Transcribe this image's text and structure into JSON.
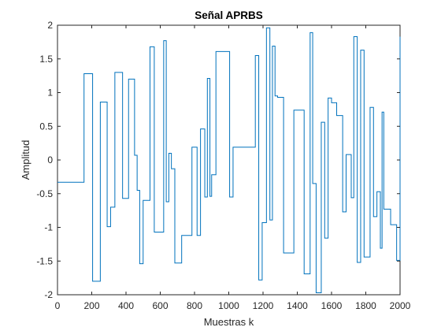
{
  "colors": {
    "line": "#0072BD",
    "axis": "#262626",
    "background": "#ffffff"
  },
  "chart_data": {
    "type": "line",
    "title": "Señal APRBS",
    "xlabel": "Muestras k",
    "ylabel": "Amplitud",
    "xlim": [
      0,
      2000
    ],
    "ylim": [
      -2,
      2
    ],
    "xticks": [
      0,
      200,
      400,
      600,
      800,
      1000,
      1200,
      1400,
      1600,
      1800,
      2000
    ],
    "yticks": [
      -2,
      -1.5,
      -1,
      -0.5,
      0,
      0.5,
      1,
      1.5,
      2
    ],
    "grid": false,
    "legend": "none",
    "step": true,
    "series": [
      {
        "x": [
          0,
          155,
          205,
          250,
          290,
          310,
          335,
          380,
          415,
          450,
          465,
          480,
          500,
          540,
          565,
          620,
          635,
          650,
          665,
          685,
          725,
          785,
          815,
          835,
          860,
          875,
          890,
          900,
          925,
          1005,
          1025,
          1155,
          1175,
          1195,
          1220,
          1240,
          1255,
          1270,
          1285,
          1320,
          1380,
          1440,
          1475,
          1490,
          1510,
          1540,
          1560,
          1580,
          1600,
          1630,
          1665,
          1685,
          1715,
          1730,
          1750,
          1770,
          1790,
          1825,
          1845,
          1865,
          1885,
          1895,
          1905,
          1945,
          1980,
          2000
        ],
        "y": [
          -0.33,
          1.28,
          -1.8,
          0.86,
          -0.99,
          -0.7,
          1.3,
          -0.57,
          1.2,
          0.07,
          -0.45,
          -1.54,
          -0.6,
          1.68,
          -1.07,
          1.77,
          -0.62,
          0.1,
          -0.13,
          -1.53,
          -1.12,
          0.19,
          -1.12,
          0.46,
          -0.55,
          1.21,
          -0.54,
          -0.22,
          1.61,
          -0.55,
          0.19,
          1.55,
          -1.78,
          -0.93,
          1.96,
          -0.89,
          1.69,
          0.95,
          0.93,
          -1.38,
          0.74,
          -1.69,
          1.89,
          -0.35,
          -1.97,
          0.56,
          -1.16,
          0.92,
          0.85,
          0.66,
          -0.77,
          0.08,
          -0.56,
          1.83,
          -1.52,
          1.63,
          -1.44,
          0.78,
          -0.84,
          -0.47,
          -1.31,
          0.71,
          -0.73,
          -0.96,
          -1.49,
          1.83
        ]
      }
    ]
  }
}
